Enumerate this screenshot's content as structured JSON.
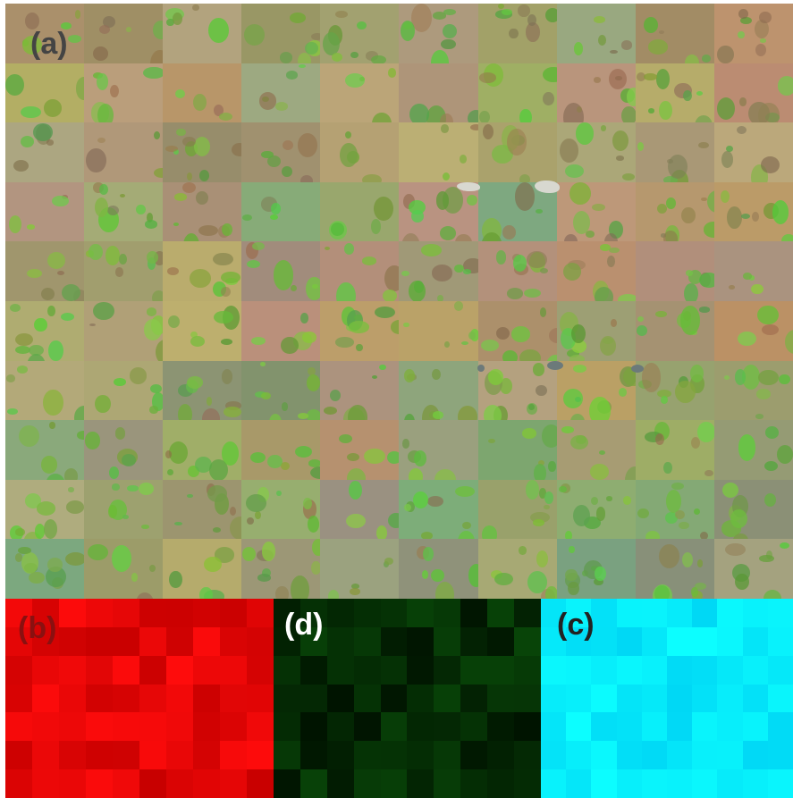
{
  "panels": {
    "a": {
      "label": "(a)"
    },
    "b": {
      "label": "(b)"
    },
    "d": {
      "label": "(d)"
    },
    "c": {
      "label": "(c)"
    }
  },
  "colors": {
    "grass_dry": "#a89a78",
    "grass_green": "#6fa83a",
    "red_channel": "#ee0000",
    "green_channel": "#062506",
    "blue_channel": "#00f2ff"
  }
}
